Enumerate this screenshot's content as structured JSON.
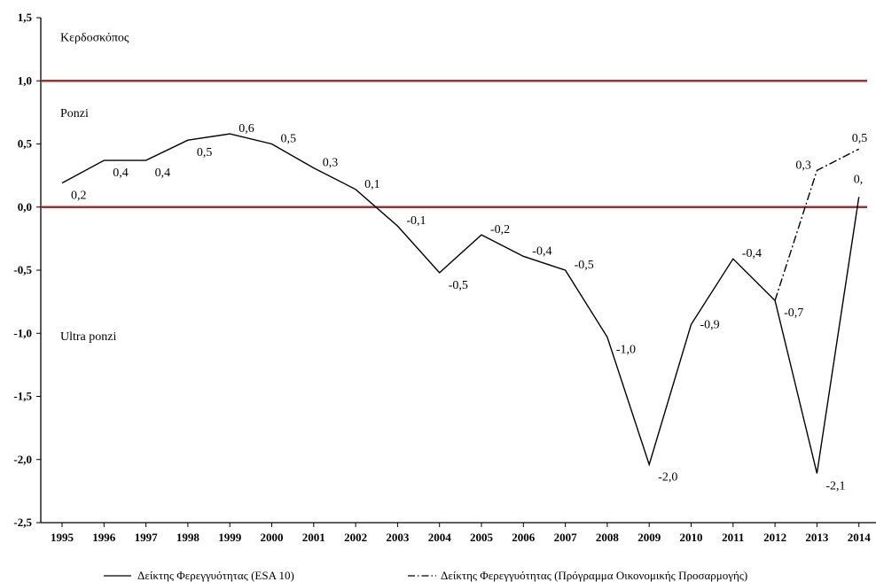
{
  "chart_data": {
    "type": "line",
    "x": [
      "1995",
      "1996",
      "1997",
      "1998",
      "1999",
      "2000",
      "2001",
      "2002",
      "2003",
      "2004",
      "2005",
      "2006",
      "2007",
      "2008",
      "2009",
      "2010",
      "2011",
      "2012",
      "2013",
      "2014"
    ],
    "ylim": [
      -2.5,
      1.5
    ],
    "yticks": [
      "1,5",
      "1,0",
      "0,5",
      "0,0",
      "-0,5",
      "-1,0",
      "-1,5",
      "-2,0",
      "-2,5"
    ],
    "ytick_values": [
      1.5,
      1.0,
      0.5,
      0.0,
      -0.5,
      -1.0,
      -1.5,
      -2.0,
      -2.5
    ],
    "xtick_labels": [
      "1995",
      "1996",
      "1997",
      "1998",
      "1999",
      "2000",
      "2001",
      "2002",
      "2003",
      "2004",
      "2005",
      "2006",
      "2007",
      "2008",
      "2009",
      "2010",
      "2011",
      "2012",
      "2013",
      "2014"
    ],
    "series": [
      {
        "name": "Δείκτης Φερεγγυότητας (ESA 10)",
        "style": "solid",
        "color": "#000000",
        "values": [
          0.19,
          0.37,
          0.37,
          0.53,
          0.58,
          0.5,
          0.31,
          0.14,
          -0.15,
          -0.52,
          -0.22,
          -0.39,
          -0.5,
          -1.03,
          -2.04,
          -0.93,
          -0.41,
          -0.74,
          -2.11,
          0.08
        ],
        "labels": [
          "0,2",
          "0,4",
          "0,4",
          "0,5",
          "0,6",
          "0,5",
          "0,3",
          "0,1",
          "-0,1",
          "-0,5",
          "-0,2",
          "-0,4",
          "-0,5",
          "-1,0",
          "-2,0",
          "-0,9",
          "-0,4",
          "-0,7",
          "-2,1",
          "0,"
        ]
      },
      {
        "name": "Δείκτης Φερεγγυότητας (Πρόγραμμα Οικονομικής Προσαρμογής)",
        "style": "dashdot",
        "color": "#000000",
        "x": [
          "2012",
          "2013",
          "2014"
        ],
        "values": [
          -0.74,
          0.29,
          0.46
        ],
        "labels": [
          "",
          "0,3",
          "0,5"
        ]
      }
    ],
    "reference_lines": [
      {
        "value": 1.0,
        "color": "#943634"
      },
      {
        "value": 0.0,
        "color": "#943634"
      }
    ],
    "zone_labels": [
      {
        "text": "Κερδοσκόπος",
        "value": 1.35
      },
      {
        "text": "Ponzi",
        "value": 0.75
      },
      {
        "text": "Ultra ponzi",
        "value": -1.02
      }
    ],
    "legend_position": "bottom"
  }
}
